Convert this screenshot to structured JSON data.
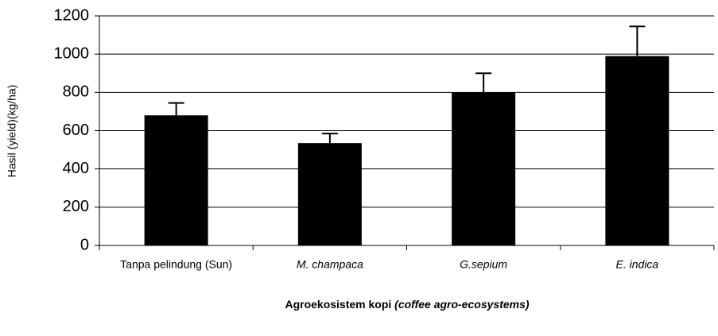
{
  "chart_data": {
    "type": "bar",
    "ylabel": "Hasil (yield)(kg/ha)",
    "xlabel": [
      "Agroekosistem kopi",
      "(coffee agro-ecosystems)"
    ],
    "categories": [
      "Tanpa pelindung (Sun)",
      "M. champaca",
      "G.sepium",
      "E. indica"
    ],
    "values": [
      680,
      535,
      800,
      990
    ],
    "errors": [
      65,
      50,
      100,
      155
    ],
    "color": "#000000",
    "ylim": [
      0,
      1200
    ],
    "yticks": [
      0,
      200,
      400,
      600,
      800,
      1000,
      1200
    ],
    "grid": true
  }
}
